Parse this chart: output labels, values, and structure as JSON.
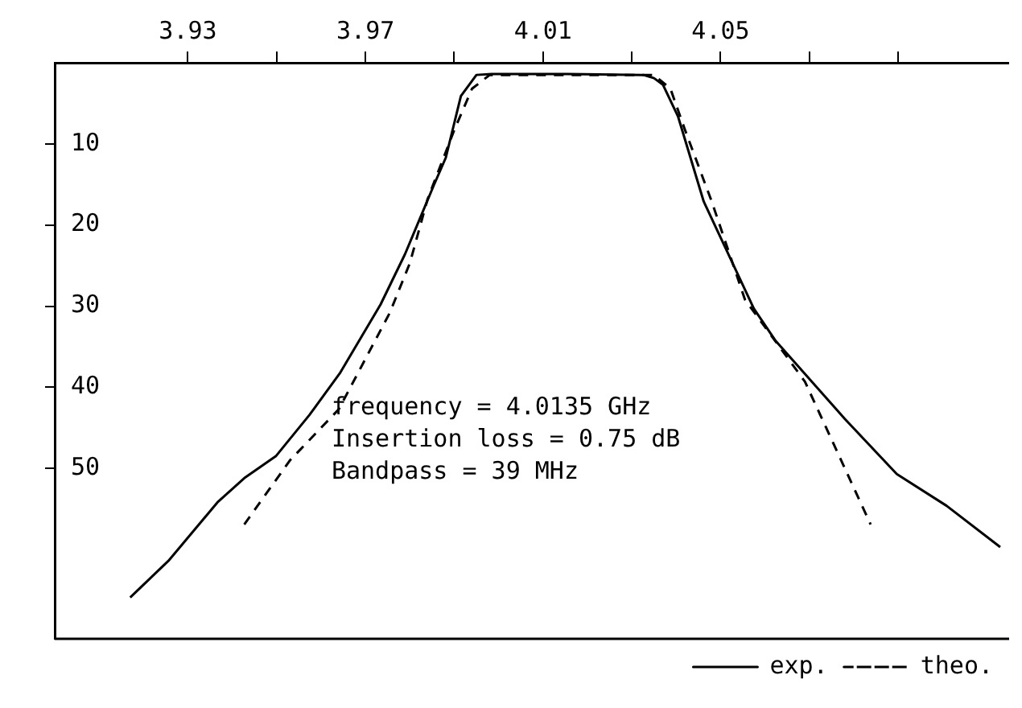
{
  "chart_data": {
    "type": "line",
    "xlim": [
      3.9,
      4.115
    ],
    "ylim": [
      71,
      0
    ],
    "xticks": [
      {
        "value": 3.93,
        "label": "3.93"
      },
      {
        "value": 3.95,
        "label": null
      },
      {
        "value": 3.97,
        "label": "3.97"
      },
      {
        "value": 3.99,
        "label": null
      },
      {
        "value": 4.01,
        "label": "4.01"
      },
      {
        "value": 4.03,
        "label": null
      },
      {
        "value": 4.05,
        "label": "4.05"
      },
      {
        "value": 4.07,
        "label": null
      },
      {
        "value": 4.09,
        "label": null
      }
    ],
    "yticks": [
      10,
      20,
      30,
      40,
      50
    ],
    "grid": false,
    "legend": "bottom right",
    "marker": "none",
    "annotations": [
      "frequency = 4.0135 GHz",
      "Insertion loss = 0.75 dB",
      "Bandpass = 39 MHz"
    ],
    "series": [
      {
        "name": "exp.",
        "color": "#000000",
        "line_style": "solid",
        "x": [
          3.917,
          3.9256,
          3.9368,
          3.9427,
          3.9498,
          3.9574,
          3.9642,
          3.9734,
          3.9789,
          3.9854,
          3.9881,
          3.9915,
          3.995,
          3.9984,
          4.0155,
          4.0326,
          4.035,
          4.037,
          4.0404,
          4.0462,
          4.0575,
          4.0623,
          4.078,
          4.0897,
          4.1009,
          4.113
        ],
        "values": [
          65.9,
          61.4,
          54.1,
          51.2,
          48.5,
          43.4,
          38.3,
          29.8,
          23.6,
          15.1,
          11.7,
          4.1,
          1.5,
          1.4,
          1.4,
          1.5,
          1.9,
          2.7,
          6.6,
          17.1,
          30.3,
          34.2,
          43.9,
          50.7,
          54.6,
          59.7
        ]
      },
      {
        "name": "theo.",
        "color": "#000000",
        "line_style": "dashed",
        "x": [
          3.9427,
          3.953,
          3.964,
          3.9755,
          3.98,
          3.984,
          3.99,
          3.994,
          3.998,
          4.035,
          4.0387,
          4.042,
          4.048,
          4.0555,
          4.069,
          4.0838
        ],
        "values": [
          56.9,
          49,
          42.7,
          30.8,
          24.7,
          16.8,
          8.3,
          3.2,
          1.5,
          1.5,
          3.2,
          8.3,
          17.1,
          29.2,
          39.3,
          56.9
        ]
      }
    ]
  }
}
